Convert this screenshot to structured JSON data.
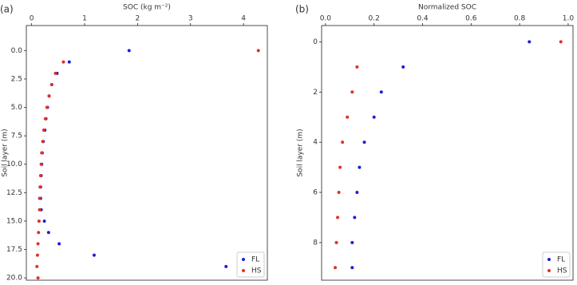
{
  "chart_data": [
    {
      "type": "scatter",
      "panel_label": "(a)",
      "x_label": "SOC (kg m⁻²)",
      "y_label": "Soil layer (m)",
      "xlim": [
        -0.1,
        4.45
      ],
      "ylim": [
        -2.2,
        20.2
      ],
      "y_inverted": true,
      "x_axis_position": "top",
      "xticks": [
        0,
        1,
        2,
        3,
        4
      ],
      "yticks": [
        {
          "value": 0,
          "label": "0.0"
        },
        2.5,
        {
          "value": 5,
          "label": "5.0"
        },
        7.5,
        {
          "value": 10,
          "label": "10.0"
        },
        12.5,
        {
          "value": 15,
          "label": "15.0"
        },
        17.5,
        {
          "value": 20,
          "label": "20.0"
        }
      ],
      "legend": "lower right",
      "series": [
        {
          "name": "FL",
          "color": "#1f1fd6",
          "x": [
            1.84,
            0.71,
            0.48,
            0.38,
            0.33,
            0.3,
            0.27,
            0.25,
            0.22,
            0.2,
            0.19,
            0.18,
            0.17,
            0.17,
            0.18,
            0.24,
            0.32,
            0.52,
            1.18,
            3.67
          ],
          "y": [
            0,
            1,
            2,
            3,
            4,
            5,
            6,
            7,
            8,
            9,
            10,
            11,
            12,
            13,
            14,
            15,
            16,
            17,
            18,
            19
          ]
        },
        {
          "name": "HS",
          "color": "#e0302a",
          "x": [
            4.28,
            0.6,
            0.45,
            0.38,
            0.33,
            0.29,
            0.26,
            0.23,
            0.21,
            0.19,
            0.18,
            0.17,
            0.16,
            0.15,
            0.15,
            0.14,
            0.13,
            0.12,
            0.11,
            0.1,
            0.12
          ],
          "y": [
            0,
            1,
            2,
            3,
            4,
            5,
            6,
            7,
            8,
            9,
            10,
            11,
            12,
            13,
            14,
            15,
            16,
            17,
            18,
            19,
            20
          ]
        }
      ]
    },
    {
      "type": "scatter",
      "panel_label": "(b)",
      "x_label": "Normalized SOC",
      "y_label": "Soil layer (m)",
      "xlim": [
        -0.016,
        1.02
      ],
      "ylim": [
        -0.65,
        9.5
      ],
      "y_inverted": true,
      "x_axis_position": "top",
      "xticks": [
        {
          "value": 0,
          "label": "0.0"
        },
        0.2,
        0.4,
        0.6,
        0.8,
        {
          "value": 1,
          "label": "1.0"
        }
      ],
      "yticks": [
        0,
        2,
        4,
        6,
        8
      ],
      "legend": "lower right",
      "series": [
        {
          "name": "FL",
          "color": "#1f1fd6",
          "x": [
            0.84,
            0.32,
            0.23,
            0.2,
            0.16,
            0.14,
            0.13,
            0.12,
            0.11,
            0.11
          ],
          "y": [
            0,
            1,
            2,
            3,
            4,
            5,
            6,
            7,
            8,
            9
          ]
        },
        {
          "name": "HS",
          "color": "#e0302a",
          "x": [
            0.97,
            0.13,
            0.11,
            0.09,
            0.07,
            0.06,
            0.055,
            0.05,
            0.045,
            0.04
          ],
          "y": [
            0,
            1,
            2,
            3,
            4,
            5,
            6,
            7,
            8,
            9
          ]
        }
      ]
    }
  ]
}
